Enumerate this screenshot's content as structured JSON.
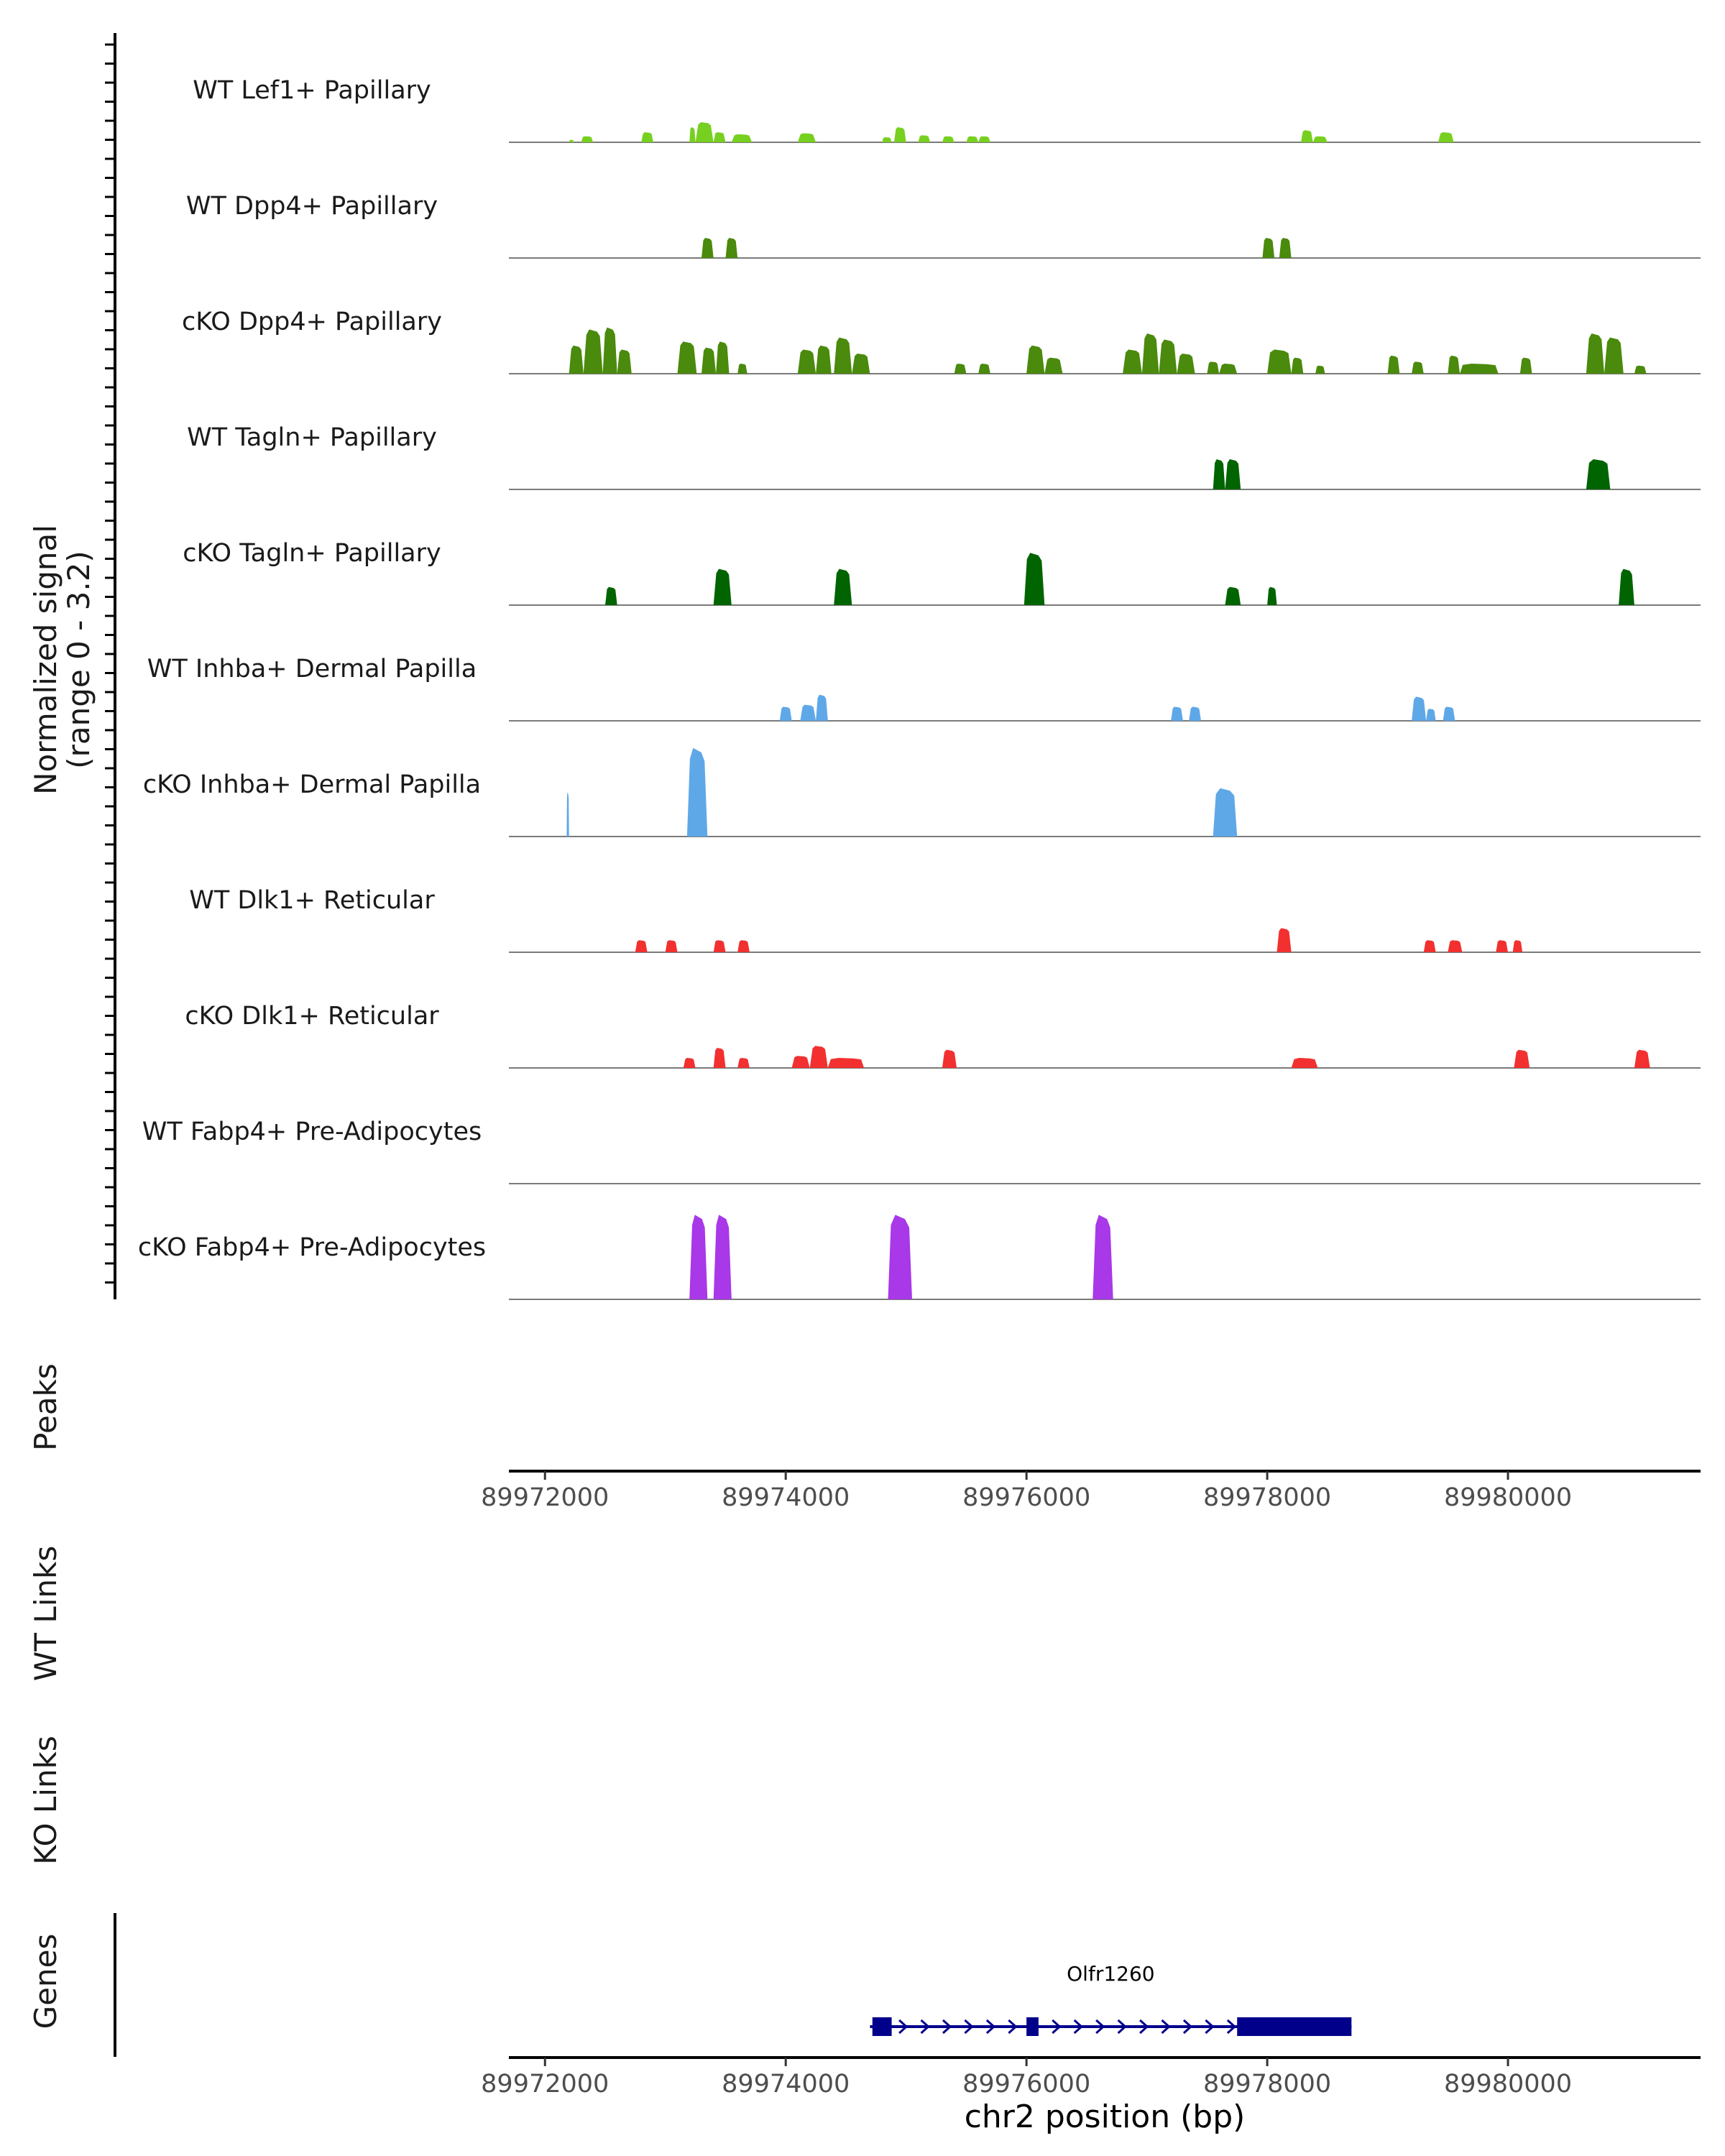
{
  "chart_data": {
    "type": "area",
    "region": "chr2",
    "x_range": [
      89971700,
      89981600
    ],
    "y_axis_title_line1": "Normalized signal",
    "y_axis_title_line2": "(range 0 - 3.2)",
    "y_range": [
      0,
      3.2
    ],
    "x_ticks": [
      89972000,
      89974000,
      89976000,
      89978000,
      89980000
    ],
    "x_tick_labels": [
      "89972000",
      "89974000",
      "89976000",
      "89978000",
      "89980000"
    ],
    "xlabel": "chr2 position (bp)",
    "panel_labels": {
      "peaks": "Peaks",
      "wt_links": "WT Links",
      "ko_links": "KO Links",
      "genes": "Genes"
    },
    "tracks": [
      {
        "name": "WT Lef1+ Papillary",
        "color": "#77D01F",
        "peaks": [
          [
            89972200,
            89972240,
            0.12
          ],
          [
            89972300,
            89972400,
            0.3
          ],
          [
            89972800,
            89972900,
            0.5
          ],
          [
            89973200,
            89973250,
            0.75
          ],
          [
            89973250,
            89973400,
            1.0
          ],
          [
            89973400,
            89973500,
            0.5
          ],
          [
            89973550,
            89973720,
            0.4
          ],
          [
            89974100,
            89974250,
            0.45
          ],
          [
            89974800,
            89974880,
            0.25
          ],
          [
            89974900,
            89975000,
            0.75
          ],
          [
            89975100,
            89975200,
            0.35
          ],
          [
            89975300,
            89975400,
            0.3
          ],
          [
            89975500,
            89975600,
            0.3
          ],
          [
            89975600,
            89975700,
            0.3
          ],
          [
            89978280,
            89978380,
            0.6
          ],
          [
            89978380,
            89978500,
            0.3
          ],
          [
            89979420,
            89979550,
            0.5
          ]
        ]
      },
      {
        "name": "WT Dpp4+ Papillary",
        "color": "#4A8A0C",
        "peaks": [
          [
            89973300,
            89973400,
            1.0
          ],
          [
            89973500,
            89973600,
            1.0
          ],
          [
            89977960,
            89978060,
            1.0
          ],
          [
            89978100,
            89978200,
            1.0
          ]
        ]
      },
      {
        "name": "cKO Dpp4+ Papillary",
        "color": "#4A8A0C",
        "peaks": [
          [
            89972200,
            89972320,
            1.4
          ],
          [
            89972320,
            89972480,
            2.2
          ],
          [
            89972480,
            89972600,
            2.3
          ],
          [
            89972600,
            89972720,
            1.2
          ],
          [
            89973100,
            89973260,
            1.6
          ],
          [
            89973300,
            89973420,
            1.3
          ],
          [
            89973420,
            89973530,
            1.6
          ],
          [
            89973600,
            89973680,
            0.5
          ],
          [
            89974100,
            89974250,
            1.2
          ],
          [
            89974250,
            89974380,
            1.4
          ],
          [
            89974400,
            89974550,
            1.8
          ],
          [
            89974550,
            89974700,
            1.0
          ],
          [
            89975400,
            89975500,
            0.5
          ],
          [
            89975600,
            89975700,
            0.5
          ],
          [
            89976000,
            89976150,
            1.4
          ],
          [
            89976150,
            89976300,
            0.8
          ],
          [
            89976800,
            89976960,
            1.2
          ],
          [
            89976960,
            89977100,
            2.0
          ],
          [
            89977100,
            89977250,
            1.7
          ],
          [
            89977250,
            89977400,
            1.0
          ],
          [
            89977500,
            89977600,
            0.6
          ],
          [
            89977600,
            89977750,
            0.5
          ],
          [
            89978000,
            89978200,
            1.2
          ],
          [
            89978200,
            89978300,
            0.8
          ],
          [
            89978400,
            89978480,
            0.4
          ],
          [
            89979000,
            89979100,
            0.9
          ],
          [
            89979200,
            89979300,
            0.6
          ],
          [
            89979500,
            89979600,
            0.9
          ],
          [
            89979600,
            89979920,
            0.5
          ],
          [
            89980100,
            89980200,
            0.8
          ],
          [
            89980650,
            89980800,
            2.0
          ],
          [
            89980800,
            89980960,
            1.8
          ],
          [
            89981050,
            89981150,
            0.4
          ]
        ]
      },
      {
        "name": "WT Tagln+ Papillary",
        "color": "#006400",
        "peaks": [
          [
            89977550,
            89977650,
            1.5
          ],
          [
            89977650,
            89977780,
            1.5
          ],
          [
            89980650,
            89980850,
            1.5
          ]
        ]
      },
      {
        "name": "cKO Tagln+ Papillary",
        "color": "#006400",
        "peaks": [
          [
            89972500,
            89972600,
            0.9
          ],
          [
            89973400,
            89973550,
            1.8
          ],
          [
            89974400,
            89974550,
            1.8
          ],
          [
            89975980,
            89976150,
            2.6
          ],
          [
            89977650,
            89977780,
            0.9
          ],
          [
            89978000,
            89978080,
            0.9
          ],
          [
            89980920,
            89981050,
            1.8
          ]
        ]
      },
      {
        "name": "WT Inhba+ Dermal Papilla",
        "color": "#5FA8E8",
        "peaks": [
          [
            89973950,
            89974050,
            0.7
          ],
          [
            89974120,
            89974250,
            0.8
          ],
          [
            89974250,
            89974350,
            1.3
          ],
          [
            89977200,
            89977300,
            0.7
          ],
          [
            89977350,
            89977450,
            0.7
          ],
          [
            89979200,
            89979320,
            1.2
          ],
          [
            89979320,
            89979400,
            0.6
          ],
          [
            89979460,
            89979560,
            0.7
          ]
        ]
      },
      {
        "name": "cKO Inhba+ Dermal Papilla",
        "color": "#5FA8E8",
        "peaks": [
          [
            89972180,
            89972200,
            2.2
          ],
          [
            89973180,
            89973350,
            4.4
          ],
          [
            89977550,
            89977750,
            2.4
          ]
        ]
      },
      {
        "name": "WT Dlk1+ Reticular",
        "color": "#F23030",
        "peaks": [
          [
            89972750,
            89972850,
            0.6
          ],
          [
            89973000,
            89973100,
            0.6
          ],
          [
            89973400,
            89973500,
            0.6
          ],
          [
            89973600,
            89973700,
            0.6
          ],
          [
            89978080,
            89978200,
            1.2
          ],
          [
            89979300,
            89979400,
            0.6
          ],
          [
            89979500,
            89979620,
            0.6
          ],
          [
            89979900,
            89980000,
            0.6
          ],
          [
            89980040,
            89980120,
            0.6
          ]
        ]
      },
      {
        "name": "cKO Dlk1+ Reticular",
        "color": "#F23030",
        "peaks": [
          [
            89973150,
            89973250,
            0.5
          ],
          [
            89973400,
            89973500,
            1.0
          ],
          [
            89973600,
            89973700,
            0.5
          ],
          [
            89974050,
            89974200,
            0.6
          ],
          [
            89974200,
            89974350,
            1.1
          ],
          [
            89974350,
            89974650,
            0.5
          ],
          [
            89975300,
            89975420,
            0.9
          ],
          [
            89978200,
            89978420,
            0.5
          ],
          [
            89980050,
            89980180,
            0.9
          ],
          [
            89981050,
            89981180,
            0.9
          ]
        ]
      },
      {
        "name": "WT Fabp4+ Pre-Adipocytes",
        "color": "#A838E8",
        "peaks": []
      },
      {
        "name": "cKO Fabp4+ Pre-Adipocytes",
        "color": "#A838E8",
        "peaks": [
          [
            89973200,
            89973350,
            4.2
          ],
          [
            89973400,
            89973550,
            4.2
          ],
          [
            89974850,
            89975050,
            4.2
          ],
          [
            89976550,
            89976720,
            4.2
          ]
        ]
      }
    ],
    "gene": {
      "name": "Olfr1260",
      "color": "#00008B",
      "strand": "+",
      "start": 89974700,
      "end": 89978700,
      "exons": [
        [
          89974720,
          89974880
        ],
        [
          89976000,
          89976100
        ],
        [
          89977750,
          89978700
        ]
      ]
    }
  }
}
